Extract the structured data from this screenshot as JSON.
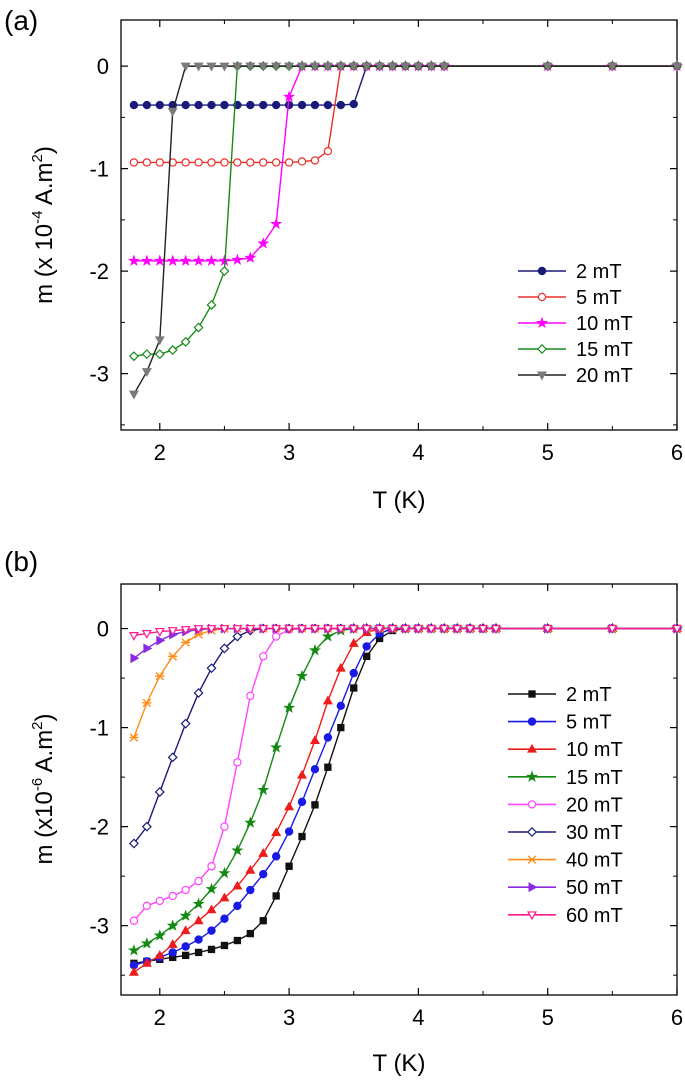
{
  "chart_data": [
    {
      "panel": "(a)",
      "type": "line",
      "xlabel": "T (K)",
      "ylabel": {
        "base": "m (x 10",
        "exp": "-4",
        "mid": " A.m",
        "exp2": "2",
        "end": ")"
      },
      "xlim": [
        1.7,
        6
      ],
      "ylim": [
        -3.55,
        0.45
      ],
      "xticks": [
        2,
        3,
        4,
        5,
        6
      ],
      "yticks": [
        0,
        -1,
        -2,
        -3
      ],
      "legend_position": "bottom-right",
      "series": [
        {
          "name": "2 mT",
          "color": "#1a1a7a",
          "marker": "circle",
          "filled": true,
          "x": [
            1.8,
            1.9,
            2.0,
            2.1,
            2.2,
            2.3,
            2.4,
            2.5,
            2.6,
            2.7,
            2.8,
            2.9,
            3.0,
            3.1,
            3.2,
            3.3,
            3.4,
            3.5,
            3.6,
            3.7,
            3.8,
            3.9,
            4.0,
            4.1,
            4.2,
            5.0,
            5.5,
            6.0
          ],
          "y": [
            -0.38,
            -0.38,
            -0.38,
            -0.38,
            -0.38,
            -0.38,
            -0.38,
            -0.38,
            -0.38,
            -0.38,
            -0.38,
            -0.38,
            -0.38,
            -0.38,
            -0.38,
            -0.38,
            -0.38,
            -0.37,
            0,
            0,
            0,
            0,
            0,
            0,
            0,
            0,
            0,
            0
          ]
        },
        {
          "name": "5 mT",
          "color": "#e8302a",
          "marker": "circle",
          "filled": false,
          "x": [
            1.8,
            1.9,
            2.0,
            2.1,
            2.2,
            2.3,
            2.4,
            2.5,
            2.6,
            2.7,
            2.8,
            2.9,
            3.0,
            3.1,
            3.2,
            3.3,
            3.4,
            3.5,
            3.6,
            3.7,
            3.8,
            3.9,
            4.0,
            4.1,
            4.2,
            5.0,
            5.5,
            6.0
          ],
          "y": [
            -0.94,
            -0.94,
            -0.94,
            -0.94,
            -0.94,
            -0.94,
            -0.94,
            -0.94,
            -0.94,
            -0.94,
            -0.94,
            -0.94,
            -0.94,
            -0.93,
            -0.92,
            -0.83,
            0,
            0,
            0,
            0,
            0,
            0,
            0,
            0,
            0,
            0,
            0,
            0
          ]
        },
        {
          "name": "10 mT",
          "color": "#ff00ff",
          "marker": "star",
          "filled": true,
          "x": [
            1.8,
            1.9,
            2.0,
            2.1,
            2.2,
            2.3,
            2.4,
            2.5,
            2.6,
            2.7,
            2.8,
            2.9,
            3.0,
            3.1,
            3.2,
            3.3,
            3.4,
            3.5,
            3.6,
            3.7,
            3.8,
            3.9,
            4.0,
            4.1,
            4.2,
            5.0,
            5.5,
            6.0
          ],
          "y": [
            -1.9,
            -1.9,
            -1.9,
            -1.9,
            -1.9,
            -1.9,
            -1.9,
            -1.9,
            -1.89,
            -1.87,
            -1.73,
            -1.54,
            -0.3,
            0,
            0,
            0,
            0,
            0,
            0,
            0,
            0,
            0,
            0,
            0,
            0,
            0,
            0,
            0
          ]
        },
        {
          "name": "15 mT",
          "color": "#1a8a1a",
          "marker": "diamond",
          "filled": false,
          "x": [
            1.8,
            1.9,
            2.0,
            2.1,
            2.2,
            2.3,
            2.4,
            2.5,
            2.6,
            2.7,
            2.8,
            2.9,
            3.0,
            3.1,
            3.2,
            3.3,
            3.4,
            3.5,
            3.6,
            3.7,
            3.8,
            3.9,
            4.0,
            4.1,
            4.2,
            5.0,
            5.5,
            6.0
          ],
          "y": [
            -2.83,
            -2.81,
            -2.81,
            -2.77,
            -2.69,
            -2.55,
            -2.33,
            -2.0,
            0,
            0,
            0,
            0,
            0,
            0,
            0,
            0,
            0,
            0,
            0,
            0,
            0,
            0,
            0,
            0,
            0,
            0,
            0,
            0
          ]
        },
        {
          "name": "20 mT",
          "color": "#222222",
          "marker": "triangle-down",
          "filled": true,
          "x": [
            1.8,
            1.9,
            2.0,
            2.1,
            2.2,
            2.3,
            2.4,
            2.5,
            2.6,
            2.7,
            2.8,
            2.9,
            3.0,
            3.1,
            3.2,
            3.3,
            3.4,
            3.5,
            3.6,
            3.7,
            3.8,
            3.9,
            4.0,
            4.1,
            4.2,
            5.0,
            5.5,
            6.0
          ],
          "y": [
            -3.2,
            -2.98,
            -2.67,
            -0.44,
            0,
            0,
            0,
            0,
            0,
            0,
            0,
            0,
            0,
            0,
            0,
            0,
            0,
            0,
            0,
            0,
            0,
            0,
            0,
            0,
            0,
            0,
            0,
            0
          ],
          "marker_color": "#7a7a7a"
        }
      ]
    },
    {
      "panel": "(b)",
      "type": "line",
      "xlabel": "T (K)",
      "ylabel": {
        "base": "m (x10",
        "exp": "-6",
        "mid": " A.m",
        "exp2": "2",
        "end": ")"
      },
      "xlim": [
        1.7,
        6
      ],
      "ylim": [
        -3.7,
        0.45
      ],
      "xticks": [
        2,
        3,
        4,
        5,
        6
      ],
      "yticks": [
        0,
        -1,
        -2,
        -3
      ],
      "legend_position": "bottom-right",
      "series": [
        {
          "name": "2 mT",
          "color": "#111111",
          "marker": "square",
          "filled": true,
          "x": [
            1.8,
            1.9,
            2.0,
            2.1,
            2.2,
            2.3,
            2.4,
            2.5,
            2.6,
            2.7,
            2.8,
            2.9,
            3.0,
            3.1,
            3.2,
            3.3,
            3.4,
            3.5,
            3.6,
            3.7,
            3.8,
            3.9,
            4.0,
            4.1,
            4.2,
            4.3,
            4.4,
            4.5,
            4.6,
            5.0,
            5.5,
            6.0
          ],
          "y": [
            -3.38,
            -3.36,
            -3.34,
            -3.32,
            -3.3,
            -3.27,
            -3.24,
            -3.2,
            -3.15,
            -3.08,
            -2.95,
            -2.7,
            -2.4,
            -2.1,
            -1.78,
            -1.4,
            -1.0,
            -0.6,
            -0.28,
            -0.1,
            -0.02,
            0,
            0,
            0,
            0,
            0,
            0,
            0,
            0,
            0,
            0,
            0
          ]
        },
        {
          "name": "5 mT",
          "color": "#1a1ae6",
          "marker": "circle",
          "filled": true,
          "x": [
            1.8,
            1.9,
            2.0,
            2.1,
            2.2,
            2.3,
            2.4,
            2.5,
            2.6,
            2.7,
            2.8,
            2.9,
            3.0,
            3.1,
            3.2,
            3.3,
            3.4,
            3.5,
            3.6,
            3.7,
            3.8,
            3.9,
            4.0,
            4.1,
            4.2,
            4.3,
            4.4,
            4.5,
            4.6,
            5.0,
            5.5,
            6.0
          ],
          "y": [
            -3.4,
            -3.36,
            -3.32,
            -3.27,
            -3.21,
            -3.14,
            -3.05,
            -2.93,
            -2.8,
            -2.64,
            -2.48,
            -2.3,
            -2.05,
            -1.75,
            -1.42,
            -1.1,
            -0.78,
            -0.45,
            -0.18,
            -0.05,
            0,
            0,
            0,
            0,
            0,
            0,
            0,
            0,
            0,
            0,
            0,
            0
          ]
        },
        {
          "name": "10 mT",
          "color": "#ee1c1c",
          "marker": "triangle-up",
          "filled": true,
          "x": [
            1.8,
            1.9,
            2.0,
            2.1,
            2.2,
            2.3,
            2.4,
            2.5,
            2.6,
            2.7,
            2.8,
            2.9,
            3.0,
            3.1,
            3.2,
            3.3,
            3.4,
            3.5,
            3.6,
            3.7,
            3.8,
            3.9,
            4.0,
            4.1,
            4.2,
            4.3,
            4.4,
            4.5,
            4.6,
            5.0,
            5.5,
            6.0
          ],
          "y": [
            -3.47,
            -3.38,
            -3.3,
            -3.19,
            -3.05,
            -2.95,
            -2.84,
            -2.72,
            -2.6,
            -2.44,
            -2.27,
            -2.06,
            -1.8,
            -1.48,
            -1.13,
            -0.73,
            -0.4,
            -0.15,
            -0.04,
            0,
            0,
            0,
            0,
            0,
            0,
            0,
            0,
            0,
            0,
            0,
            0,
            0
          ]
        },
        {
          "name": "15 mT",
          "color": "#138a13",
          "marker": "star",
          "filled": true,
          "x": [
            1.8,
            1.9,
            2.0,
            2.1,
            2.2,
            2.3,
            2.4,
            2.5,
            2.6,
            2.7,
            2.8,
            2.9,
            3.0,
            3.1,
            3.2,
            3.3,
            3.4,
            3.5,
            3.6,
            3.7,
            3.8,
            3.9,
            4.0,
            4.1,
            4.2,
            4.3,
            4.4,
            4.5,
            4.6,
            5.0,
            5.5,
            6.0
          ],
          "y": [
            -3.25,
            -3.18,
            -3.1,
            -3.0,
            -2.9,
            -2.78,
            -2.63,
            -2.47,
            -2.24,
            -1.96,
            -1.63,
            -1.2,
            -0.8,
            -0.48,
            -0.22,
            -0.08,
            -0.02,
            0,
            0,
            0,
            0,
            0,
            0,
            0,
            0,
            0,
            0,
            0,
            0,
            0,
            0,
            0
          ]
        },
        {
          "name": "20 mT",
          "color": "#ff44ff",
          "marker": "circle",
          "filled": false,
          "x": [
            1.8,
            1.9,
            2.0,
            2.1,
            2.2,
            2.3,
            2.4,
            2.5,
            2.6,
            2.7,
            2.8,
            2.9,
            3.0,
            3.1,
            3.2,
            3.3,
            3.4,
            3.5,
            3.6,
            3.7,
            3.8,
            3.9,
            4.0,
            4.1,
            4.2,
            4.3,
            4.4,
            4.5,
            4.6,
            5.0,
            5.5,
            6.0
          ],
          "y": [
            -2.95,
            -2.8,
            -2.75,
            -2.7,
            -2.64,
            -2.55,
            -2.4,
            -2.0,
            -1.35,
            -0.68,
            -0.28,
            -0.08,
            -0.01,
            0,
            0,
            0,
            0,
            0,
            0,
            0,
            0,
            0,
            0,
            0,
            0,
            0,
            0,
            0,
            0,
            0,
            0,
            0
          ]
        },
        {
          "name": "30 mT",
          "color": "#1a1a7a",
          "marker": "diamond",
          "filled": false,
          "x": [
            1.8,
            1.9,
            2.0,
            2.1,
            2.2,
            2.3,
            2.4,
            2.5,
            2.6,
            2.7,
            2.8,
            2.9,
            3.0,
            3.1,
            3.2,
            3.3,
            3.4,
            3.5,
            3.6,
            3.7,
            3.8,
            3.9,
            4.0,
            4.1,
            4.2,
            4.3,
            4.4,
            4.5,
            4.6,
            5.0,
            5.5,
            6.0
          ],
          "y": [
            -2.17,
            -2.0,
            -1.65,
            -1.3,
            -0.96,
            -0.65,
            -0.4,
            -0.2,
            -0.08,
            -0.02,
            0,
            0,
            0,
            0,
            0,
            0,
            0,
            0,
            0,
            0,
            0,
            0,
            0,
            0,
            0,
            0,
            0,
            0,
            0,
            0,
            0,
            0
          ]
        },
        {
          "name": "40 mT",
          "color": "#ff8c1a",
          "marker": "x-star",
          "filled": true,
          "x": [
            1.8,
            1.9,
            2.0,
            2.1,
            2.2,
            2.3,
            2.4,
            2.5,
            2.6,
            2.7,
            2.8,
            2.9,
            3.0,
            3.1,
            3.2,
            3.3,
            3.4,
            3.5,
            3.6,
            3.7,
            3.8,
            3.9,
            4.0,
            4.1,
            4.2,
            4.3,
            4.4,
            4.5,
            4.6,
            5.0,
            5.5,
            6.0
          ],
          "y": [
            -1.1,
            -0.75,
            -0.48,
            -0.28,
            -0.14,
            -0.06,
            -0.02,
            0,
            0,
            0,
            0,
            0,
            0,
            0,
            0,
            0,
            0,
            0,
            0,
            0,
            0,
            0,
            0,
            0,
            0,
            0,
            0,
            0,
            0,
            0,
            0,
            0
          ]
        },
        {
          "name": "50 mT",
          "color": "#8a2be2",
          "marker": "triangle-right",
          "filled": true,
          "x": [
            1.8,
            1.9,
            2.0,
            2.1,
            2.2,
            2.3,
            2.4,
            2.5,
            2.6,
            2.7,
            2.8,
            2.9,
            3.0,
            3.1,
            3.2,
            3.3,
            3.4,
            3.5,
            3.6,
            3.7,
            3.8,
            3.9,
            4.0,
            4.1,
            4.2,
            4.3,
            4.4,
            4.5,
            4.6,
            5.0,
            5.5,
            6.0
          ],
          "y": [
            -0.3,
            -0.2,
            -0.12,
            -0.06,
            -0.03,
            -0.01,
            0,
            0,
            0,
            0,
            0,
            0,
            0,
            0,
            0,
            0,
            0,
            0,
            0,
            0,
            0,
            0,
            0,
            0,
            0,
            0,
            0,
            0,
            0,
            0,
            0,
            0
          ]
        },
        {
          "name": "60 mT",
          "color": "#ff1a8c",
          "marker": "triangle-down",
          "filled": false,
          "x": [
            1.8,
            1.9,
            2.0,
            2.1,
            2.2,
            2.3,
            2.4,
            2.5,
            2.6,
            2.7,
            2.8,
            2.9,
            3.0,
            3.1,
            3.2,
            3.3,
            3.4,
            3.5,
            3.6,
            3.7,
            3.8,
            3.9,
            4.0,
            4.1,
            4.2,
            4.3,
            4.4,
            4.5,
            4.6,
            5.0,
            5.5,
            6.0
          ],
          "y": [
            -0.07,
            -0.05,
            -0.03,
            -0.02,
            -0.01,
            0,
            0,
            0,
            0,
            0,
            0,
            0,
            0,
            0,
            0,
            0,
            0,
            0,
            0,
            0,
            0,
            0,
            0,
            0,
            0,
            0,
            0,
            0,
            0,
            0,
            0,
            0
          ]
        }
      ]
    }
  ]
}
